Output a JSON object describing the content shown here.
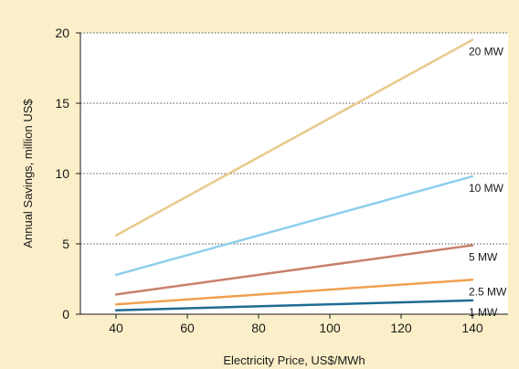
{
  "chart_data": {
    "type": "line",
    "title": "",
    "xlabel": "Electricity Price, US$/MWh",
    "ylabel": "Annual Savings, million US$",
    "xlim": [
      40,
      140
    ],
    "ylim": [
      0,
      20
    ],
    "x_ticks": [
      40,
      60,
      80,
      100,
      120,
      140
    ],
    "y_ticks": [
      0,
      5,
      10,
      15,
      20
    ],
    "grid": "horizontal dotted",
    "legend": "inline labels at line ends",
    "series": [
      {
        "name": "20 MW",
        "color": "#e8c98a",
        "x": [
          40,
          140
        ],
        "y": [
          5.6,
          19.5
        ]
      },
      {
        "name": "10 MW",
        "color": "#8ecfee",
        "x": [
          40,
          140
        ],
        "y": [
          2.8,
          9.8
        ]
      },
      {
        "name": "5 MW",
        "color": "#c9806a",
        "x": [
          40,
          140
        ],
        "y": [
          1.4,
          4.9
        ]
      },
      {
        "name": "2.5 MW",
        "color": "#f0a050",
        "x": [
          40,
          140
        ],
        "y": [
          0.7,
          2.45
        ]
      },
      {
        "name": "1 MW",
        "color": "#1f6b94",
        "x": [
          40,
          140
        ],
        "y": [
          0.28,
          0.98
        ]
      }
    ]
  }
}
